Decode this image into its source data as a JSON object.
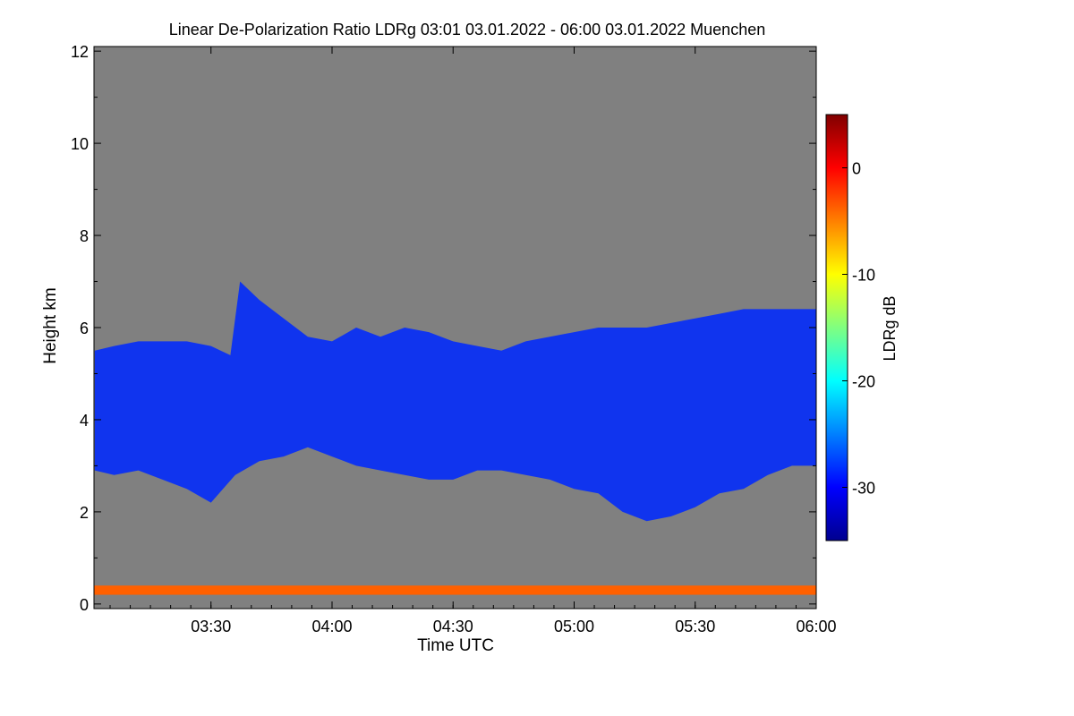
{
  "chart_data": {
    "type": "heatmap",
    "title": "Linear De-Polarization Ratio LDRg   03:01 03.01.2022 - 06:00 03.01.2022 Muenchen",
    "xlabel": "Time UTC",
    "ylabel": "Height km",
    "xlim_hours": [
      3.0167,
      6.0
    ],
    "ylim": [
      -0.1,
      12.1
    ],
    "x_ticks": [
      {
        "h": 3.5,
        "label": "03:30"
      },
      {
        "h": 4.0,
        "label": "04:00"
      },
      {
        "h": 4.5,
        "label": "04:30"
      },
      {
        "h": 5.0,
        "label": "05:00"
      },
      {
        "h": 5.5,
        "label": "05:30"
      },
      {
        "h": 6.0,
        "label": "06:00"
      }
    ],
    "y_ticks": [
      0,
      2,
      4,
      6,
      8,
      10,
      12
    ],
    "colorbar": {
      "label": "LDRg dB",
      "range": [
        -35,
        5
      ],
      "ticks": [
        0,
        -10,
        -20,
        -30
      ],
      "colors": [
        "#00008f",
        "#0000ff",
        "#0080ff",
        "#00ffff",
        "#80ff80",
        "#ffff00",
        "#ff8000",
        "#ff0000",
        "#800000"
      ]
    },
    "background_color": "#808080",
    "cloud_layer": {
      "ldr_db": -31,
      "color": "#1034ee",
      "top_km": [
        [
          3.02,
          5.5
        ],
        [
          3.1,
          5.6
        ],
        [
          3.2,
          5.7
        ],
        [
          3.3,
          5.7
        ],
        [
          3.4,
          5.7
        ],
        [
          3.5,
          5.6
        ],
        [
          3.58,
          5.4
        ],
        [
          3.62,
          7.0
        ],
        [
          3.7,
          6.6
        ],
        [
          3.8,
          6.2
        ],
        [
          3.9,
          5.8
        ],
        [
          4.0,
          5.7
        ],
        [
          4.1,
          6.0
        ],
        [
          4.2,
          5.8
        ],
        [
          4.3,
          6.0
        ],
        [
          4.4,
          5.9
        ],
        [
          4.5,
          5.7
        ],
        [
          4.6,
          5.6
        ],
        [
          4.7,
          5.5
        ],
        [
          4.8,
          5.7
        ],
        [
          4.9,
          5.8
        ],
        [
          5.0,
          5.9
        ],
        [
          5.1,
          6.0
        ],
        [
          5.2,
          6.0
        ],
        [
          5.3,
          6.0
        ],
        [
          5.4,
          6.1
        ],
        [
          5.5,
          6.2
        ],
        [
          5.6,
          6.3
        ],
        [
          5.7,
          6.4
        ],
        [
          5.8,
          6.4
        ],
        [
          5.9,
          6.4
        ],
        [
          6.0,
          6.4
        ]
      ],
      "base_km": [
        [
          3.02,
          2.9
        ],
        [
          3.1,
          2.8
        ],
        [
          3.2,
          2.9
        ],
        [
          3.3,
          2.7
        ],
        [
          3.4,
          2.5
        ],
        [
          3.5,
          2.2
        ],
        [
          3.6,
          2.8
        ],
        [
          3.7,
          3.1
        ],
        [
          3.8,
          3.2
        ],
        [
          3.9,
          3.4
        ],
        [
          4.0,
          3.2
        ],
        [
          4.1,
          3.0
        ],
        [
          4.2,
          2.9
        ],
        [
          4.3,
          2.8
        ],
        [
          4.4,
          2.7
        ],
        [
          4.5,
          2.7
        ],
        [
          4.6,
          2.9
        ],
        [
          4.7,
          2.9
        ],
        [
          4.8,
          2.8
        ],
        [
          4.9,
          2.7
        ],
        [
          5.0,
          2.5
        ],
        [
          5.1,
          2.4
        ],
        [
          5.2,
          2.0
        ],
        [
          5.3,
          1.8
        ],
        [
          5.4,
          1.9
        ],
        [
          5.5,
          2.1
        ],
        [
          5.6,
          2.4
        ],
        [
          5.7,
          2.5
        ],
        [
          5.8,
          2.8
        ],
        [
          5.9,
          3.0
        ],
        [
          6.0,
          3.0
        ]
      ]
    },
    "near_ground_layer": {
      "height_km": 0.3,
      "ldr_db": 0,
      "color": "#ff6000"
    }
  }
}
